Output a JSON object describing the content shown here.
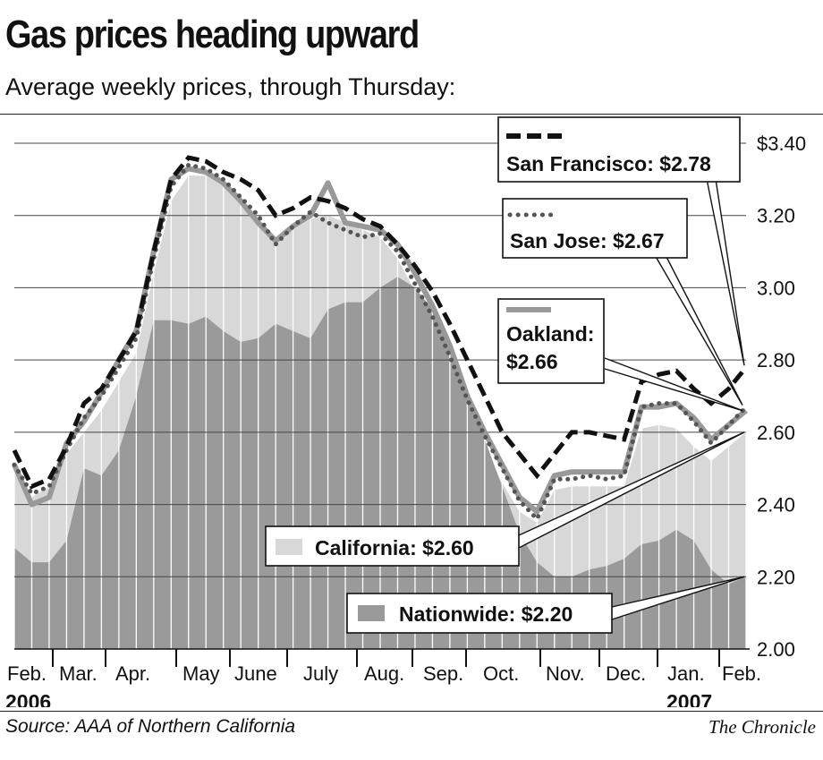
{
  "title": "Gas prices heading upward",
  "subtitle": "Average weekly prices, through Thursday:",
  "source": "Source: AAA of Northern California",
  "credit": "The Chronicle",
  "colors": {
    "california": "#d8d8d8",
    "nationwide": "#9a9a9a",
    "san_francisco": "#111111",
    "san_jose": "#555555",
    "oakland": "#999999",
    "gridline": "#444444"
  },
  "chart_data": {
    "type": "line",
    "y_unit": "US dollars per gallon",
    "ylim": [
      2.0,
      3.4
    ],
    "y_ticks": [
      "$3.40",
      "3.20",
      "3.00",
      "2.80",
      "2.60",
      "2.40",
      "2.20",
      "2.00"
    ],
    "y_tick_values": [
      3.4,
      3.2,
      3.0,
      2.8,
      2.6,
      2.4,
      2.2,
      2.0
    ],
    "grid": true,
    "x_start_label": "Feb. 2006",
    "months": [
      "Feb.",
      "Mar.",
      "Apr.",
      "May",
      "June",
      "July",
      "Aug.",
      "Sep.",
      "Oct.",
      "Nov.",
      "Dec.",
      "Jan.",
      "Feb."
    ],
    "years": [
      "2006",
      "2007"
    ],
    "series": [
      {
        "key": "sf",
        "name": "San Francisco",
        "label": "San Francisco: $2.78",
        "style": "dashed",
        "final": 2.78,
        "values": [
          2.55,
          2.45,
          2.47,
          2.56,
          2.68,
          2.72,
          2.8,
          2.88,
          3.1,
          3.3,
          3.36,
          3.35,
          3.32,
          3.3,
          3.27,
          3.2,
          3.22,
          3.25,
          3.24,
          3.22,
          3.19,
          3.17,
          3.12,
          3.06,
          2.99,
          2.9,
          2.8,
          2.7,
          2.6,
          2.54,
          2.48,
          2.54,
          2.6,
          2.6,
          2.59,
          2.58,
          2.74,
          2.76,
          2.77,
          2.72,
          2.68,
          2.72,
          2.78
        ]
      },
      {
        "key": "sj",
        "name": "San Jose",
        "label": "San Jose: $2.67",
        "style": "dotted",
        "final": 2.67,
        "values": [
          2.51,
          2.43,
          2.45,
          2.55,
          2.64,
          2.7,
          2.78,
          2.86,
          3.08,
          3.28,
          3.34,
          3.33,
          3.3,
          3.25,
          3.2,
          3.12,
          3.17,
          3.21,
          3.18,
          3.16,
          3.14,
          3.15,
          3.1,
          3.01,
          2.92,
          2.81,
          2.69,
          2.59,
          2.5,
          2.41,
          2.36,
          2.47,
          2.47,
          2.48,
          2.47,
          2.48,
          2.67,
          2.68,
          2.68,
          2.63,
          2.57,
          2.62,
          2.67
        ]
      },
      {
        "key": "oak",
        "name": "Oakland",
        "label_line1": "Oakland:",
        "label_line2": "$2.66",
        "style": "solid",
        "final": 2.66,
        "values": [
          2.51,
          2.4,
          2.42,
          2.57,
          2.63,
          2.71,
          2.8,
          2.88,
          3.1,
          3.3,
          3.33,
          3.32,
          3.29,
          3.24,
          3.18,
          3.13,
          3.17,
          3.2,
          3.29,
          3.18,
          3.17,
          3.16,
          3.12,
          3.04,
          2.95,
          2.84,
          2.7,
          2.6,
          2.51,
          2.42,
          2.38,
          2.48,
          2.49,
          2.49,
          2.49,
          2.49,
          2.67,
          2.67,
          2.68,
          2.64,
          2.58,
          2.62,
          2.66
        ]
      },
      {
        "key": "ca",
        "name": "California",
        "label": "California: $2.60",
        "style": "area",
        "final": 2.6,
        "values": [
          2.5,
          2.42,
          2.45,
          2.54,
          2.6,
          2.66,
          2.74,
          2.82,
          3.04,
          3.24,
          3.31,
          3.31,
          3.28,
          3.24,
          3.18,
          3.12,
          3.16,
          3.19,
          3.2,
          3.18,
          3.16,
          3.14,
          3.08,
          2.99,
          2.88,
          2.77,
          2.65,
          2.55,
          2.46,
          2.38,
          2.35,
          2.44,
          2.45,
          2.45,
          2.45,
          2.45,
          2.61,
          2.62,
          2.61,
          2.56,
          2.52,
          2.56,
          2.6
        ]
      },
      {
        "key": "us",
        "name": "Nationwide",
        "label": "Nationwide: $2.20",
        "style": "area",
        "final": 2.2,
        "values": [
          2.28,
          2.24,
          2.24,
          2.3,
          2.5,
          2.48,
          2.55,
          2.7,
          2.91,
          2.91,
          2.9,
          2.92,
          2.88,
          2.85,
          2.86,
          2.9,
          2.88,
          2.86,
          2.94,
          2.96,
          2.96,
          3.0,
          3.03,
          3.0,
          2.94,
          2.85,
          2.72,
          2.58,
          2.45,
          2.32,
          2.24,
          2.2,
          2.2,
          2.22,
          2.23,
          2.25,
          2.29,
          2.3,
          2.33,
          2.3,
          2.22,
          2.18,
          2.2
        ]
      }
    ]
  }
}
